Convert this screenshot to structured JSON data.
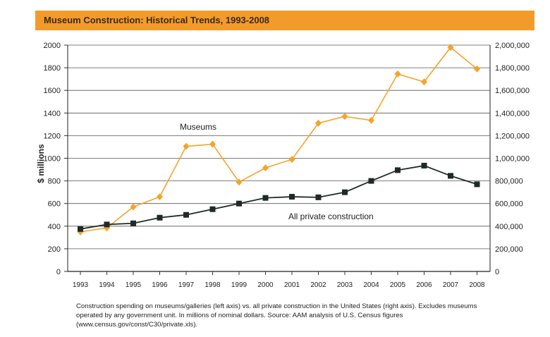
{
  "header": {
    "title": "Museum Construction: Historical Trends, 1993-2008"
  },
  "chart_data": {
    "type": "line",
    "title": "Museum Construction: Historical Trends, 1993-2008",
    "categories": [
      "1993",
      "1994",
      "1995",
      "1996",
      "1997",
      "1998",
      "1999",
      "2000",
      "2001",
      "2002",
      "2003",
      "2004",
      "2005",
      "2006",
      "2007",
      "2008"
    ],
    "ylabel": "$ millions",
    "ylim": [
      0,
      2000
    ],
    "yticks": [
      "0",
      "200",
      "400",
      "600",
      "800",
      "1000",
      "1200",
      "1400",
      "1600",
      "1800",
      "2000"
    ],
    "y2lim": [
      0,
      2000000
    ],
    "y2ticks": [
      "0",
      "200,000",
      "400,000",
      "600,000",
      "800,000",
      "1,000,000",
      "1,200,000",
      "1,400,000",
      "1,600,000",
      "1,800,000",
      "2,000,000"
    ],
    "grid": true,
    "series": [
      {
        "name": "Museums",
        "axis": "left",
        "marker": "diamond",
        "color": "#f5a32b",
        "values": [
          350,
          385,
          570,
          660,
          1105,
          1125,
          790,
          915,
          990,
          1310,
          1370,
          1335,
          1745,
          1675,
          1980,
          1790
        ]
      },
      {
        "name": "All private construction",
        "axis": "right",
        "marker": "square",
        "color": "#1f2a26",
        "values": [
          375000,
          415000,
          425000,
          475000,
          500000,
          550000,
          600000,
          650000,
          660000,
          655000,
          700000,
          800000,
          895000,
          935000,
          845000,
          770000
        ]
      }
    ]
  },
  "caption": {
    "text": "Construction spending on museums/galleries (left axis) vs. all private construction in the United States (right axis). Excludes museums operated by any government unit. In millions of nominal dollars.  Source: AAM analysis of U.S. Census figures (www.census.gov/const/C30/private.xls)."
  }
}
